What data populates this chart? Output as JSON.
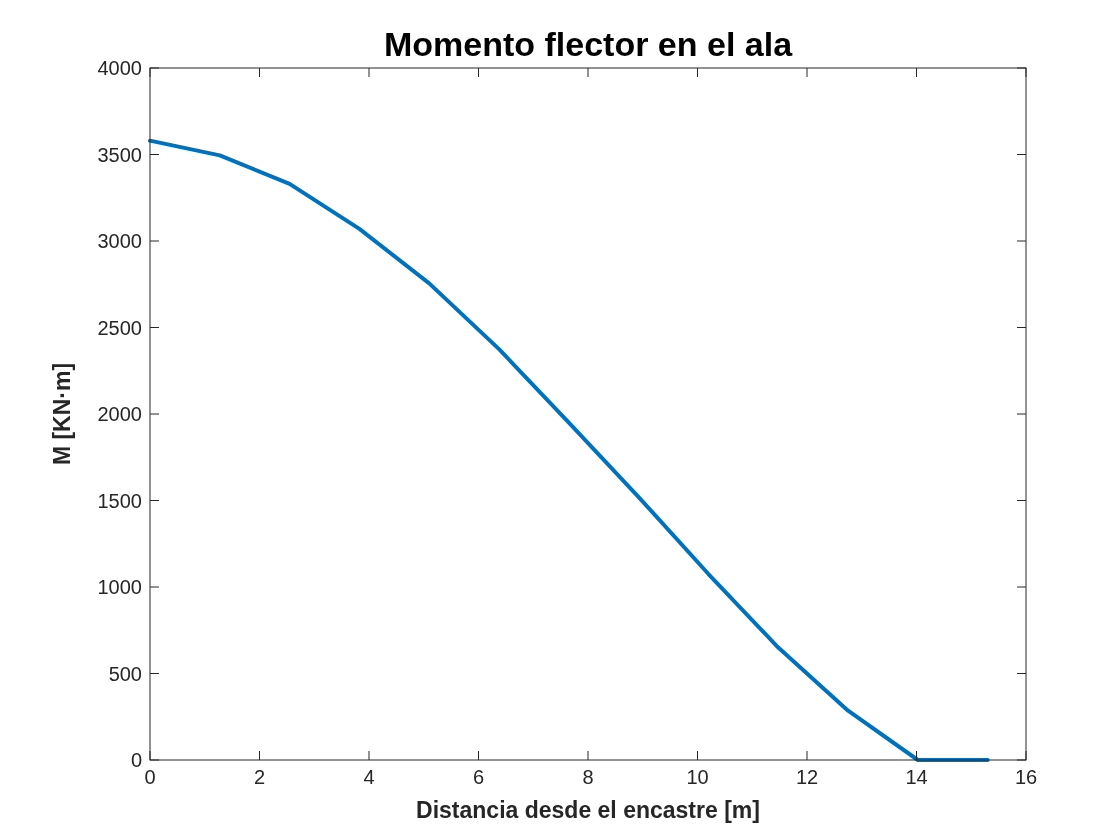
{
  "chart_data": {
    "type": "line",
    "title": "Momento flector en el ala",
    "xlabel": "Distancia desde el encastre [m]",
    "ylabel": "M [KN·m]",
    "x": [
      0,
      1.275,
      2.55,
      3.825,
      5.1,
      6.375,
      7.65,
      8.925,
      10.2,
      11.475,
      12.75,
      14.025,
      15.3
    ],
    "series": [
      {
        "color": "#0072bd",
        "values": [
          3580,
          3495,
          3330,
          3070,
          2755,
          2375,
          1950,
          1520,
          1075,
          650,
          285,
          0,
          0
        ]
      }
    ],
    "xlim": [
      0,
      16
    ],
    "xticks": [
      0,
      2,
      4,
      6,
      8,
      10,
      12,
      14,
      16
    ],
    "ylim": [
      0,
      4000
    ],
    "yticks": [
      0,
      500,
      1000,
      1500,
      2000,
      2500,
      3000,
      3500,
      4000
    ],
    "grid": false,
    "marker": "none",
    "line_style": "solid"
  }
}
